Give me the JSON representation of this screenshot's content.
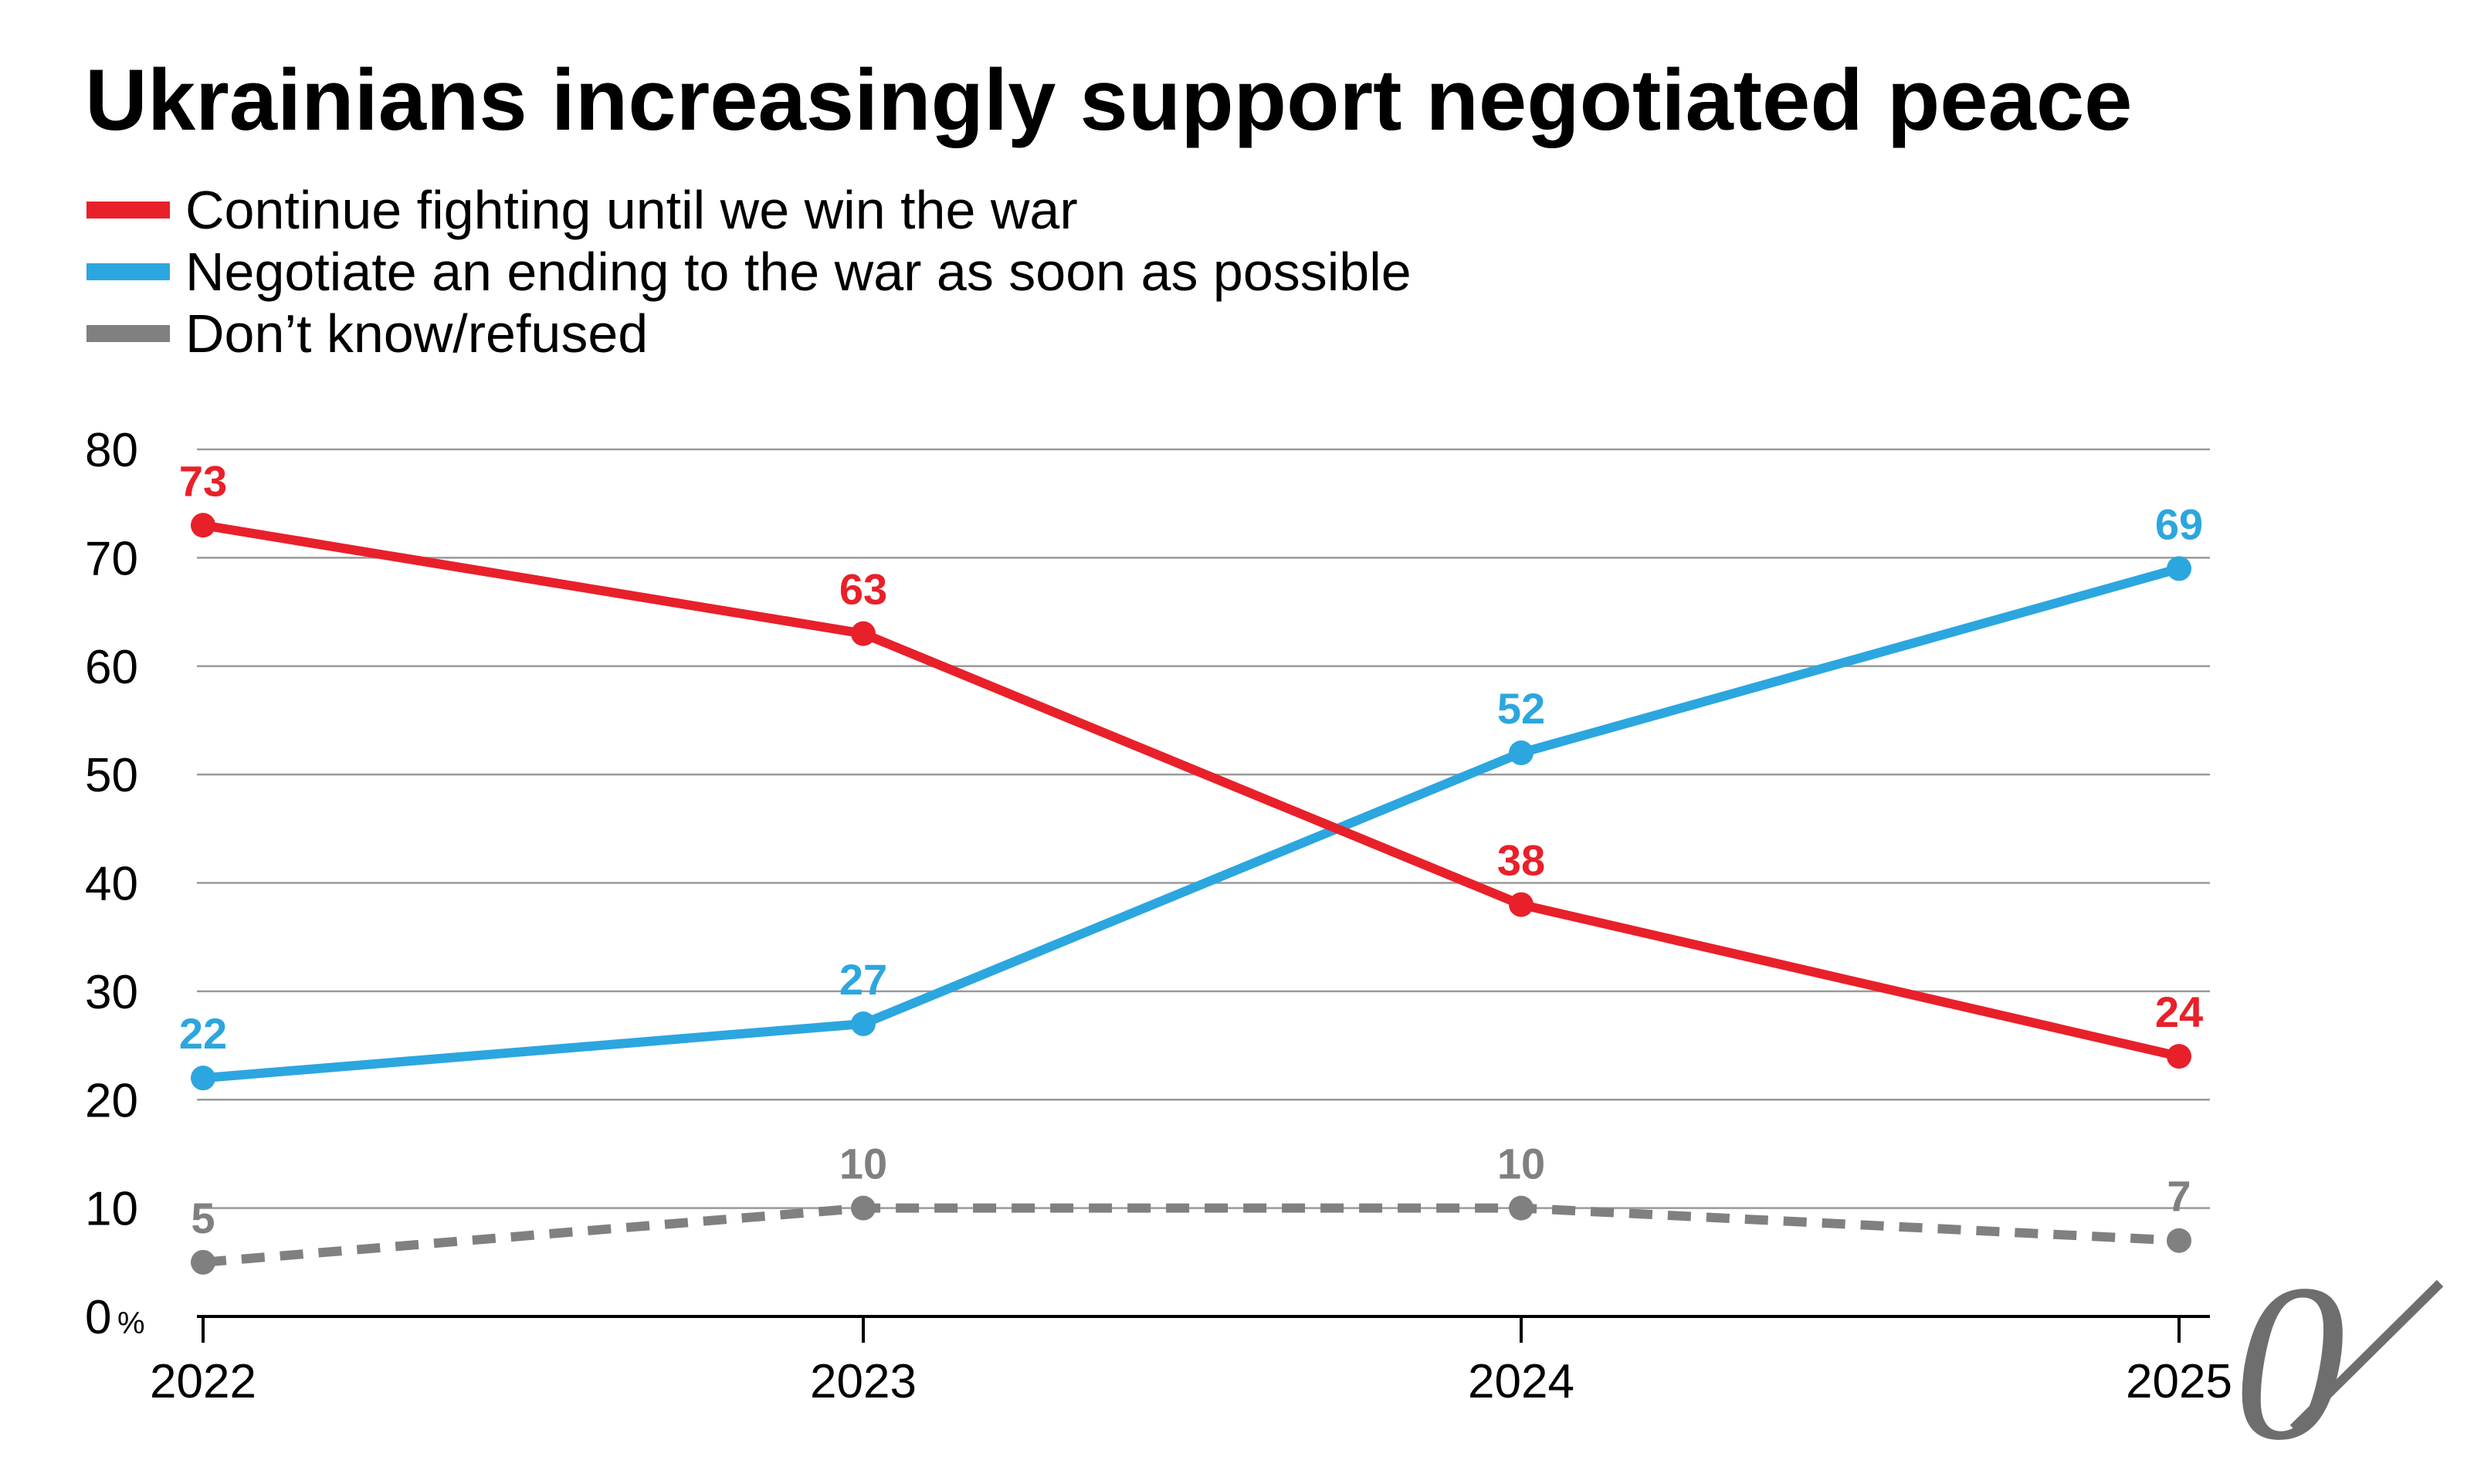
{
  "chart_data": {
    "type": "line",
    "title": "Ukrainians increasingly support negotiated peace",
    "categories": [
      "2022",
      "2023",
      "2024",
      "2025"
    ],
    "series": [
      {
        "name": "Continue fighting until we win the war",
        "values": [
          73,
          63,
          38,
          24
        ],
        "color": "#e8202a",
        "style": "solid"
      },
      {
        "name": "Negotiate an ending to the war as soon as possible",
        "values": [
          22,
          27,
          52,
          69
        ],
        "color": "#2ca6df",
        "style": "solid"
      },
      {
        "name": "Don’t know/refused",
        "values": [
          5,
          10,
          10,
          7
        ],
        "color": "#808080",
        "style": "dashed"
      }
    ],
    "ylim": [
      0,
      80
    ],
    "yticks": [
      "0",
      "10",
      "20",
      "30",
      "40",
      "50",
      "60",
      "70",
      "80"
    ],
    "ytick_suffix": "%",
    "xlabel": "",
    "ylabel": "",
    "grid": true,
    "legend": "top-left"
  },
  "logo": {
    "glyph": "0",
    "color": "#6e6e6e"
  }
}
